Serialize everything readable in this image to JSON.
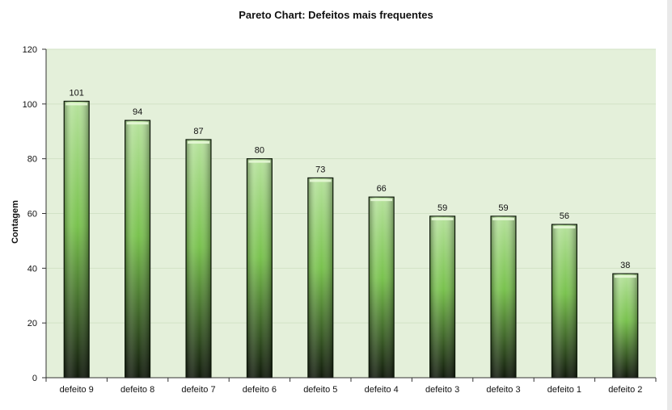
{
  "chart_data": {
    "type": "bar",
    "title": "Pareto Chart: Defeitos mais frequentes",
    "xlabel": "",
    "ylabel": "Contagem",
    "categories": [
      "defeito 9",
      "defeito 8",
      "defeito 7",
      "defeito 6",
      "defeito 5",
      "defeito 4",
      "defeito 3",
      "defeito 3",
      "defeito 1",
      "defeito 2"
    ],
    "values": [
      101,
      94,
      87,
      80,
      73,
      66,
      59,
      59,
      56,
      38
    ],
    "ylim": [
      0,
      120
    ],
    "yticks": [
      0,
      20,
      40,
      60,
      80,
      100,
      120
    ],
    "grid": true,
    "legend": "none",
    "colors": {
      "plot_background": "#e4f0da",
      "gridline": "#d2e2c6",
      "bar_light": "#b6e29c",
      "bar_mid": "#79c24e",
      "bar_dark": "#111a0c",
      "bar_border": "#0d1a08"
    }
  }
}
